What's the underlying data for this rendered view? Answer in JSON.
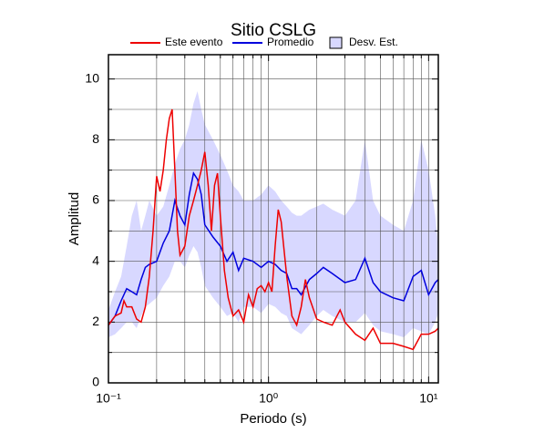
{
  "chart_data": {
    "type": "line",
    "title": "Sitio CSLG",
    "x_label": "Periodo (s)",
    "y_label": "Amplitud",
    "xscale": "log",
    "xlim": [
      0.1,
      11.5
    ],
    "ylim": [
      0,
      10.8
    ],
    "xticks": [
      {
        "value": 0.1,
        "label": "10⁻¹"
      },
      {
        "value": 1,
        "label": "10⁰"
      },
      {
        "value": 10,
        "label": "10¹"
      }
    ],
    "x_minor_ticks": [
      0.2,
      0.3,
      0.4,
      0.5,
      0.6,
      0.7,
      0.8,
      0.9,
      2,
      3,
      4,
      5,
      6,
      7,
      8,
      9
    ],
    "yticks": [
      0,
      2,
      4,
      6,
      8,
      10
    ],
    "y_minor_ticks": [
      1,
      3,
      5,
      7,
      9
    ],
    "grid": true,
    "legend": "top",
    "series": [
      {
        "name": "Este evento",
        "color": "#ee0000",
        "x": [
          0.1,
          0.11,
          0.12,
          0.125,
          0.13,
          0.14,
          0.15,
          0.16,
          0.17,
          0.18,
          0.19,
          0.2,
          0.21,
          0.22,
          0.23,
          0.24,
          0.25,
          0.26,
          0.27,
          0.28,
          0.3,
          0.32,
          0.34,
          0.36,
          0.38,
          0.4,
          0.42,
          0.44,
          0.46,
          0.48,
          0.5,
          0.53,
          0.56,
          0.6,
          0.65,
          0.7,
          0.75,
          0.8,
          0.85,
          0.9,
          0.95,
          1.0,
          1.05,
          1.1,
          1.15,
          1.2,
          1.3,
          1.4,
          1.5,
          1.6,
          1.7,
          1.8,
          2.0,
          2.2,
          2.5,
          2.8,
          3.0,
          3.5,
          4.0,
          4.5,
          5,
          6,
          7,
          8,
          9,
          10,
          11,
          11.5
        ],
        "values": [
          1.9,
          2.2,
          2.3,
          2.7,
          2.5,
          2.5,
          2.1,
          2.0,
          2.5,
          3.5,
          5.0,
          6.8,
          6.3,
          7.0,
          8.0,
          8.7,
          9.0,
          7.0,
          5.0,
          4.2,
          4.5,
          5.5,
          6.0,
          6.5,
          7.0,
          7.6,
          6.5,
          5.0,
          6.5,
          6.9,
          5.5,
          3.7,
          2.8,
          2.2,
          2.4,
          2.0,
          2.9,
          2.5,
          3.1,
          3.2,
          3.0,
          3.3,
          3.0,
          4.5,
          5.7,
          5.3,
          3.5,
          2.2,
          1.9,
          2.5,
          3.4,
          2.8,
          2.1,
          2.0,
          1.9,
          2.4,
          2.0,
          1.6,
          1.4,
          1.8,
          1.3,
          1.3,
          1.2,
          1.1,
          1.6,
          1.6,
          1.7,
          1.8
        ]
      },
      {
        "name": "Promedio",
        "color": "#0000dd",
        "x": [
          0.1,
          0.11,
          0.12,
          0.13,
          0.14,
          0.15,
          0.16,
          0.17,
          0.18,
          0.2,
          0.22,
          0.24,
          0.26,
          0.28,
          0.3,
          0.32,
          0.34,
          0.36,
          0.38,
          0.4,
          0.45,
          0.5,
          0.55,
          0.6,
          0.65,
          0.7,
          0.8,
          0.9,
          1.0,
          1.1,
          1.2,
          1.3,
          1.4,
          1.5,
          1.6,
          1.8,
          2.0,
          2.2,
          2.5,
          3.0,
          3.5,
          4.0,
          4.5,
          5.0,
          6,
          7,
          8,
          9,
          10,
          11,
          11.5
        ],
        "values": [
          1.9,
          2.2,
          2.7,
          3.1,
          3.0,
          2.9,
          3.4,
          3.8,
          3.9,
          4.0,
          4.6,
          5.0,
          6.0,
          5.5,
          5.2,
          6.2,
          6.9,
          6.7,
          6.2,
          5.2,
          4.8,
          4.5,
          4.0,
          4.3,
          3.7,
          4.1,
          4.0,
          3.8,
          4.0,
          3.9,
          3.7,
          3.6,
          3.1,
          3.1,
          2.9,
          3.4,
          3.6,
          3.8,
          3.6,
          3.3,
          3.4,
          4.1,
          3.3,
          3.0,
          2.8,
          2.7,
          3.5,
          3.7,
          2.9,
          3.3,
          3.4
        ]
      },
      {
        "name": "Desv. Est.",
        "color": "#d8d8ff",
        "kind": "band",
        "x": [
          0.1,
          0.11,
          0.12,
          0.13,
          0.14,
          0.15,
          0.16,
          0.17,
          0.18,
          0.2,
          0.22,
          0.24,
          0.26,
          0.28,
          0.3,
          0.32,
          0.34,
          0.36,
          0.38,
          0.4,
          0.45,
          0.5,
          0.55,
          0.6,
          0.65,
          0.7,
          0.8,
          0.9,
          1.0,
          1.1,
          1.2,
          1.3,
          1.4,
          1.5,
          1.6,
          1.8,
          2.0,
          2.2,
          2.5,
          3.0,
          3.5,
          4.0,
          4.5,
          5.0,
          6,
          7,
          8,
          9,
          10,
          11,
          11.5
        ],
        "lower": [
          1.5,
          1.6,
          1.8,
          2.0,
          2.0,
          1.8,
          2.2,
          2.5,
          2.6,
          2.8,
          3.2,
          3.5,
          4.0,
          4.0,
          3.8,
          4.2,
          4.5,
          4.3,
          3.8,
          3.2,
          2.8,
          2.5,
          2.2,
          2.3,
          2.0,
          2.5,
          2.5,
          2.3,
          2.6,
          2.5,
          2.3,
          2.2,
          1.8,
          1.7,
          1.6,
          1.9,
          2.2,
          2.4,
          2.2,
          2.0,
          2.0,
          2.3,
          1.9,
          1.7,
          1.6,
          1.5,
          1.8,
          1.7,
          1.6,
          2.0,
          2.3
        ],
        "upper": [
          2.4,
          3.0,
          3.5,
          4.5,
          5.5,
          6.0,
          5.0,
          5.5,
          6.0,
          5.5,
          5.8,
          6.5,
          7.2,
          7.7,
          8.0,
          8.5,
          9.2,
          9.6,
          9.0,
          8.5,
          8.0,
          7.5,
          7.0,
          6.5,
          6.3,
          6.0,
          6.0,
          6.2,
          6.5,
          6.3,
          6.0,
          5.8,
          5.6,
          5.5,
          5.5,
          5.7,
          5.8,
          5.9,
          5.7,
          5.5,
          6.0,
          8.0,
          6.0,
          5.5,
          5.2,
          5.0,
          6.0,
          8.0,
          7.0,
          5.5,
          4.5
        ]
      }
    ]
  }
}
